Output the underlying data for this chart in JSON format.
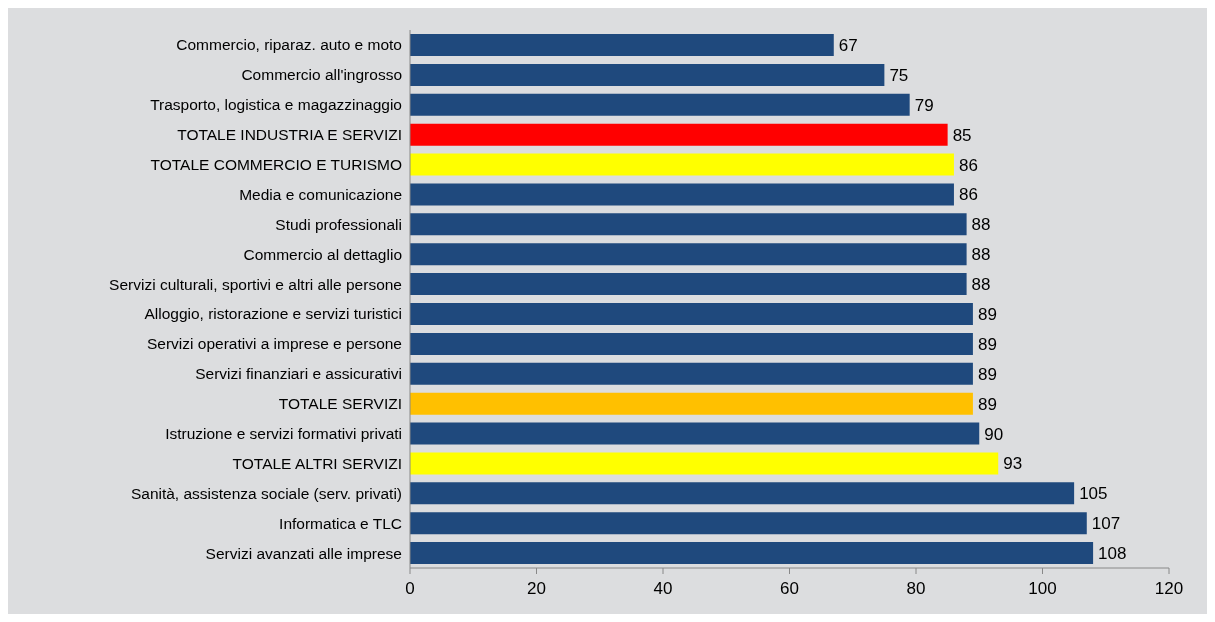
{
  "chart_data": {
    "type": "bar",
    "orientation": "horizontal",
    "categories": [
      "Commercio, riparaz. auto e moto",
      "Commercio all'ingrosso",
      "Trasporto, logistica e magazzinaggio",
      "TOTALE INDUSTRIA E SERVIZI",
      "TOTALE COMMERCIO E TURISMO",
      "Media e comunicazione",
      "Studi professionali",
      "Commercio al dettaglio",
      "Servizi culturali, sportivi e altri alle persone",
      "Alloggio, ristorazione e servizi turistici",
      "Servizi operativi a imprese e persone",
      "Servizi finanziari e assicurativi",
      "TOTALE SERVIZI",
      "Istruzione e servizi formativi privati",
      "TOTALE ALTRI SERVIZI",
      "Sanità, assistenza sociale (serv. privati)",
      "Informatica e TLC",
      "Servizi avanzati alle imprese"
    ],
    "values": [
      67,
      75,
      79,
      85,
      86,
      86,
      88,
      88,
      88,
      89,
      89,
      89,
      89,
      90,
      93,
      105,
      107,
      108
    ],
    "colors": [
      "#1f497d",
      "#1f497d",
      "#1f497d",
      "#ff0000",
      "#ffff00",
      "#1f497d",
      "#1f497d",
      "#1f497d",
      "#1f497d",
      "#1f497d",
      "#1f497d",
      "#1f497d",
      "#ffc000",
      "#1f497d",
      "#ffff00",
      "#1f497d",
      "#1f497d",
      "#1f497d"
    ],
    "xlim": [
      0,
      120
    ],
    "xticks": [
      0,
      20,
      40,
      60,
      80,
      100,
      120
    ],
    "data_labels": true
  }
}
